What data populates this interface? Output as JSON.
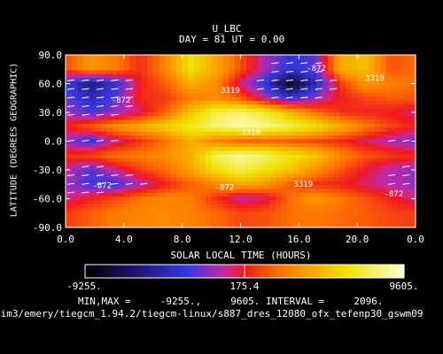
{
  "chart_data": {
    "type": "heatmap",
    "title": "U_LBC",
    "subtitle_day_label": "DAY =",
    "subtitle_day": "81",
    "subtitle_ut_label": "UT =",
    "subtitle_ut": "0.00",
    "xlabel": "SOLAR LOCAL TIME (HOURS)",
    "ylabel": "LATITUDE (DEGREES GEOGRAPHIC)",
    "xlim": [
      0,
      24
    ],
    "ylim": [
      -90,
      90
    ],
    "x_ticks": [
      "0.0",
      "4.0",
      "8.0",
      "12.0",
      "16.0",
      "20.0",
      "0.0"
    ],
    "y_ticks": [
      "90.0",
      "60.0",
      "30.0",
      "0.0",
      "-30.0",
      "-60.0",
      "-90.0"
    ],
    "contour_labels": [
      {
        "text": "-872",
        "x": 17.2,
        "y": 77
      },
      {
        "text": "3319",
        "x": 11.3,
        "y": 54
      },
      {
        "text": "3319",
        "x": 21.2,
        "y": 67
      },
      {
        "text": "-872",
        "x": 3.8,
        "y": 44
      },
      {
        "text": "3319",
        "x": 12.7,
        "y": 10
      },
      {
        "text": "-872",
        "x": 2.5,
        "y": -45
      },
      {
        "text": "-872",
        "x": 10.9,
        "y": -47
      },
      {
        "text": "3319",
        "x": 16.3,
        "y": -44
      },
      {
        "text": "-872",
        "x": 22.5,
        "y": -54
      }
    ],
    "colorbar": {
      "min_label": "-9255.",
      "mid_label": "175.4",
      "max_label": "9605.",
      "min": -9255,
      "max": 9605
    },
    "stats": {
      "label": "MIN,MAX =",
      "min": "-9255.,",
      "max": "9605.",
      "interval_label": "INTERVAL =",
      "interval": "2096."
    },
    "path": "nim3/emery/tiegcm_1.94.2/tiegcm-linux/s887_dres_12080_ofx_tefenp30_gswm09",
    "field": [
      {
        "lat": 75,
        "lt": [
          1400,
          3500,
          2600,
          600,
          2900,
          6300,
          4200,
          1500,
          -1500,
          -3600,
          -2600,
          4300,
          4900,
          1500,
          2100
        ]
      },
      {
        "lat": 60,
        "lt": [
          -3200,
          -5600,
          -3600,
          300,
          1800,
          4400,
          3200,
          -600,
          -3600,
          -8000,
          -4300,
          800,
          3600,
          2800,
          2300
        ]
      },
      {
        "lat": 45,
        "lt": [
          -2400,
          -4300,
          -2700,
          600,
          900,
          2400,
          3100,
          1600,
          -1400,
          -3700,
          -1900,
          300,
          1200,
          1800,
          1600
        ]
      },
      {
        "lat": 30,
        "lt": [
          -1600,
          -2900,
          -1700,
          -400,
          1900,
          5200,
          7400,
          8200,
          6900,
          4700,
          2300,
          700,
          400,
          200,
          -600
        ]
      },
      {
        "lat": 15,
        "lt": [
          300,
          1900,
          3300,
          4400,
          5600,
          6900,
          8000,
          8900,
          8400,
          7600,
          6300,
          4400,
          2600,
          1200,
          300
        ]
      },
      {
        "lat": 0,
        "lt": [
          -1800,
          -3500,
          -800,
          800,
          2300,
          4500,
          2800,
          1900,
          2000,
          1700,
          1200,
          600,
          -400,
          -1400,
          -2300
        ]
      },
      {
        "lat": -15,
        "lt": [
          700,
          1300,
          2300,
          2600,
          3300,
          4400,
          7600,
          8700,
          7800,
          6500,
          5300,
          3000,
          1600,
          1000,
          600
        ]
      },
      {
        "lat": -30,
        "lt": [
          -900,
          -2800,
          -700,
          1100,
          2200,
          4000,
          6200,
          7600,
          6400,
          5300,
          3300,
          1600,
          100,
          -1200,
          -1800
        ]
      },
      {
        "lat": -45,
        "lt": [
          -1600,
          -3200,
          -3400,
          -1400,
          300,
          1800,
          2900,
          4300,
          3500,
          1600,
          700,
          400,
          -500,
          -1300,
          -1900
        ]
      },
      {
        "lat": -60,
        "lt": [
          -800,
          300,
          1200,
          2400,
          2900,
          2600,
          800,
          -1000,
          -300,
          2200,
          3600,
          2500,
          1500,
          400,
          -700
        ]
      },
      {
        "lat": -75,
        "lt": [
          900,
          1800,
          2600,
          2900,
          3100,
          2700,
          2100,
          1300,
          1500,
          2200,
          2500,
          2100,
          1800,
          1200,
          1000
        ]
      }
    ]
  }
}
